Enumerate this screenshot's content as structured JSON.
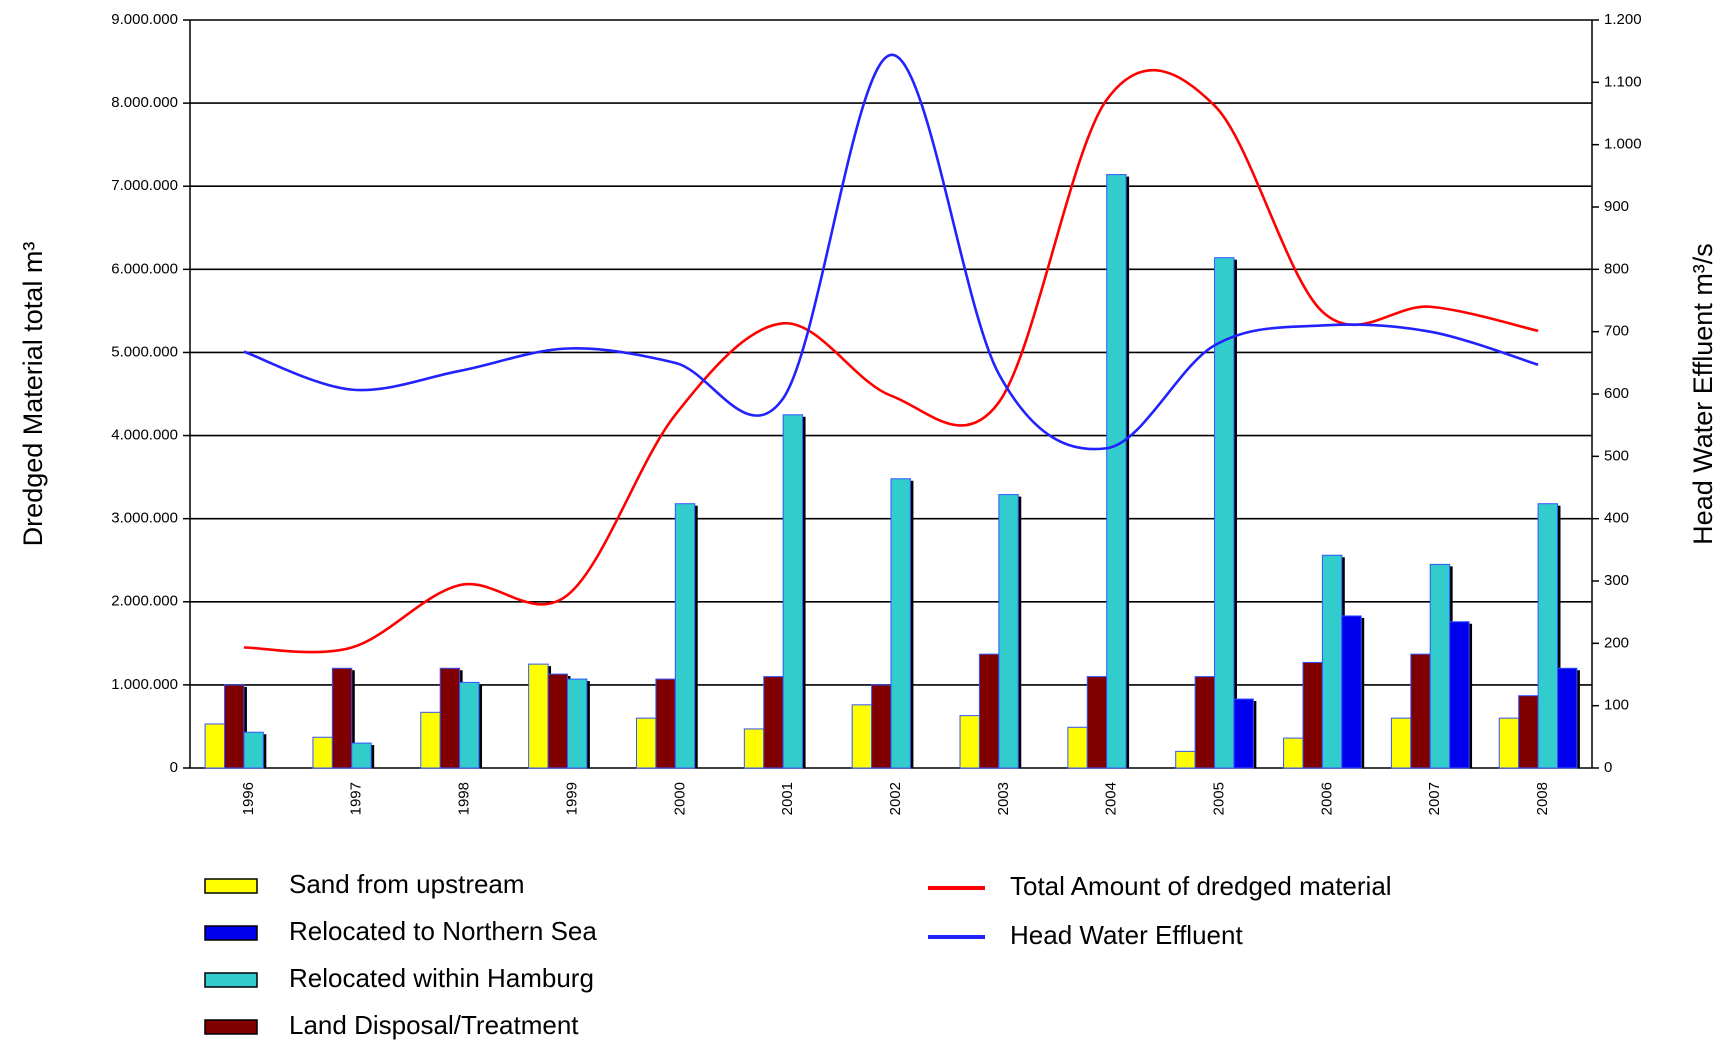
{
  "chart_data": {
    "type": "bar",
    "y_label": "Dredged Material total m³",
    "y2_label": "Head Water Effluent m³/s",
    "categories": [
      "1996",
      "1997",
      "1998",
      "1999",
      "2000",
      "2001",
      "2002",
      "2003",
      "2004",
      "2005",
      "2006",
      "2007",
      "2008"
    ],
    "ylim": [
      0,
      9000000
    ],
    "yticks": [
      {
        "value": 0,
        "label": "0"
      },
      {
        "value": 1000000,
        "label": "1.000.000"
      },
      {
        "value": 2000000,
        "label": "2.000.000"
      },
      {
        "value": 3000000,
        "label": "3.000.000"
      },
      {
        "value": 4000000,
        "label": "4.000.000"
      },
      {
        "value": 5000000,
        "label": "5.000.000"
      },
      {
        "value": 6000000,
        "label": "6.000.000"
      },
      {
        "value": 7000000,
        "label": "7.000.000"
      },
      {
        "value": 8000000,
        "label": "8.000.000"
      },
      {
        "value": 9000000,
        "label": "9.000.000"
      }
    ],
    "y2lim": [
      0,
      1200
    ],
    "y2ticks": [
      0,
      100,
      200,
      300,
      400,
      500,
      600,
      700,
      800,
      900,
      {
        "value": 1000,
        "label": "1.000"
      },
      {
        "value": 1100,
        "label": "1.100"
      },
      {
        "value": 1200,
        "label": "1.200"
      }
    ],
    "grid": true,
    "series": [
      {
        "name": "Sand from upstream",
        "type": "bar",
        "color": "#ffff00",
        "values": [
          530000,
          370000,
          670000,
          1250000,
          600000,
          470000,
          760000,
          630000,
          490000,
          200000,
          360000,
          600000,
          600000
        ]
      },
      {
        "name": "Relocated to Northern Sea",
        "type": "bar",
        "color": "#0000ee",
        "values": [
          null,
          null,
          null,
          null,
          null,
          null,
          null,
          null,
          null,
          830000,
          1830000,
          1760000,
          1200000
        ]
      },
      {
        "name": "Relocated within Hamburg",
        "type": "bar",
        "color": "#33cccc",
        "values": [
          430000,
          300000,
          1030000,
          1070000,
          3180000,
          4250000,
          3480000,
          3290000,
          7140000,
          6140000,
          2560000,
          2450000,
          3180000
        ]
      },
      {
        "name": "Land Disposal/Treatment",
        "type": "bar",
        "color": "#800000",
        "values": [
          1000000,
          1200000,
          1200000,
          1130000,
          1070000,
          1100000,
          1000000,
          1370000,
          1100000,
          1100000,
          1270000,
          1370000,
          870000
        ]
      },
      {
        "name": "Total Amount of dredged material",
        "type": "line",
        "color": "#ff0000",
        "values": [
          1450000,
          1450000,
          2200000,
          2080000,
          4250000,
          5350000,
          4480000,
          4400000,
          8040000,
          7970000,
          5490000,
          5550000,
          5260000
        ]
      },
      {
        "name": "Head Water Effluent",
        "type": "line",
        "axis": "y2",
        "color": "#2222ff",
        "values": [
          668,
          607,
          637,
          673,
          650,
          593,
          1144,
          632,
          513,
          678,
          710,
          700,
          647
        ]
      }
    ]
  }
}
